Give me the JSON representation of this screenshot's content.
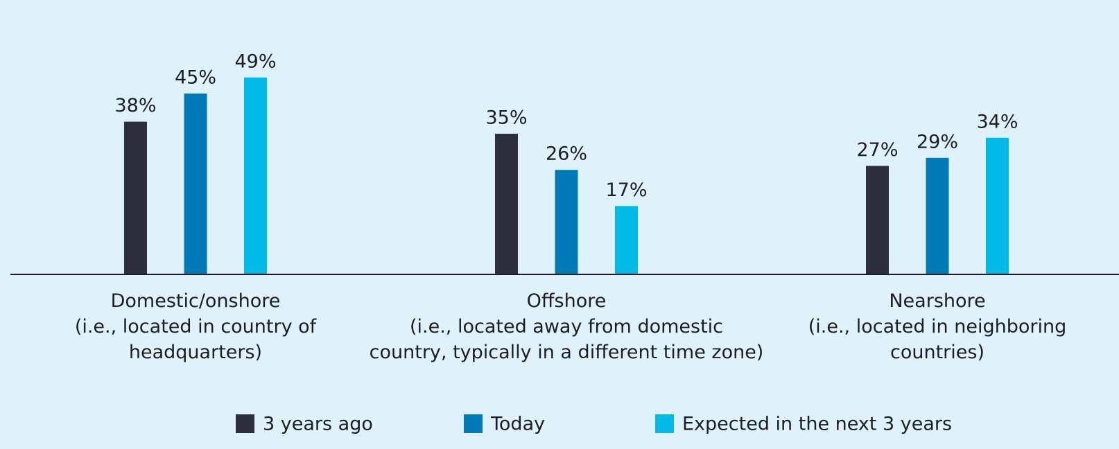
{
  "chart_data": {
    "type": "bar",
    "categories": [
      "Domestic/onshore\n(i.e., located in country of\nheadquarters)",
      "Offshore\n(i.e., located away from domestic\ncountry, typically in a different time zone)",
      "Nearshore\n(i.e., located in neighboring\ncountries)"
    ],
    "series": [
      {
        "name": "3 years ago",
        "color": "#2e2f3e",
        "values": [
          38,
          35,
          27
        ],
        "value_labels": [
          "38%",
          "35%",
          "27%"
        ]
      },
      {
        "name": "Today",
        "color": "#007bb8",
        "values": [
          45,
          26,
          29
        ],
        "value_labels": [
          "45%",
          "26%",
          "29%"
        ]
      },
      {
        "name": "Expected in the next 3 years",
        "color": "#00b9e6",
        "values": [
          49,
          17,
          34
        ],
        "value_labels": [
          "49%",
          "17%",
          "34%"
        ]
      }
    ],
    "ylim": [
      0,
      60
    ],
    "legend": "bottom"
  }
}
